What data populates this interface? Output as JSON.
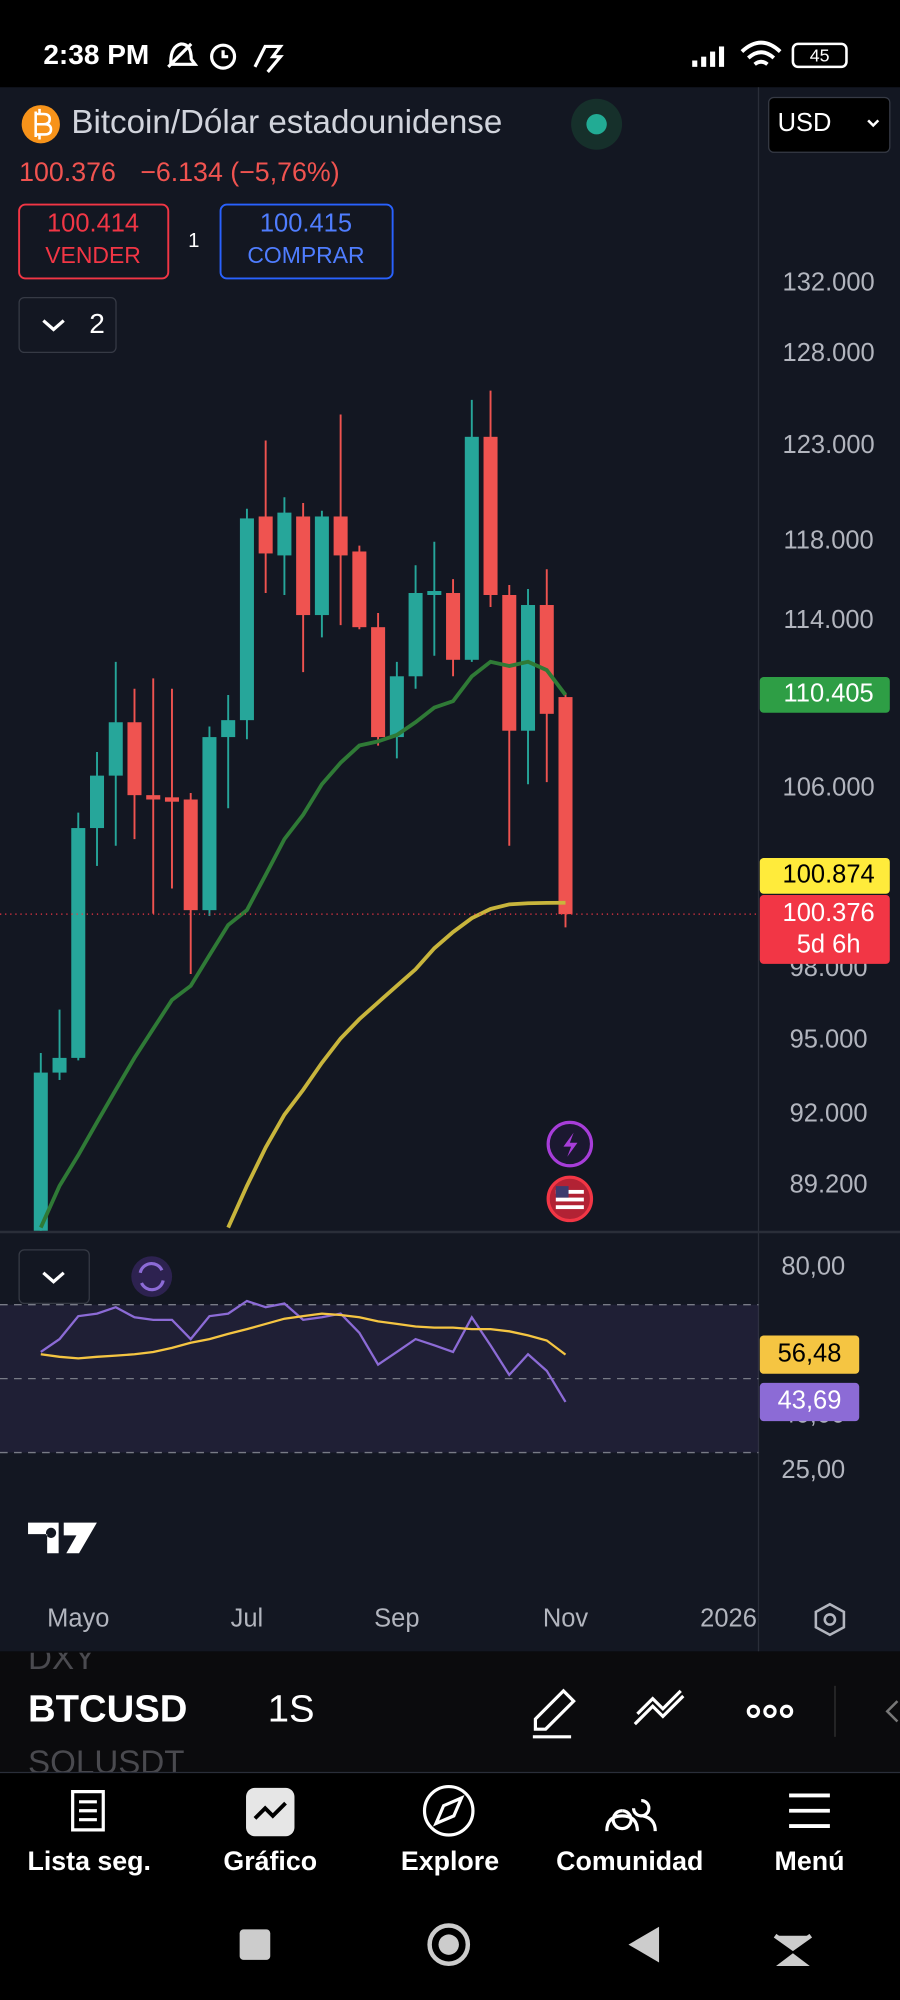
{
  "status_bar": {
    "time": "2:38 PM",
    "battery": "45"
  },
  "header": {
    "title": "Bitcoin/Dólar estadounidense",
    "currency": "USD",
    "price": "100.376",
    "change": "−6.134 (−5,76%)"
  },
  "trade": {
    "sell_price": "100.414",
    "sell_label": "VENDER",
    "quantity": "1",
    "buy_price": "100.415",
    "buy_label": "COMPRAR"
  },
  "indicators_toggle": "2",
  "chart_data": [
    {
      "type": "candlestick",
      "log_scale": true,
      "grid": true,
      "up_color": "#26a69a",
      "down_color": "#ef5350",
      "xlim": [
        -2.177,
        38.299
      ],
      "xticks": [
        {
          "value": 2,
          "label": "Mayo"
        },
        {
          "value": 11,
          "label": "Jul"
        },
        {
          "value": 19,
          "label": "Sep"
        },
        {
          "value": 28,
          "label": "Nov"
        },
        {
          "value": 36.7,
          "label": "2026"
        }
      ],
      "ylim": [
        87480,
        143750
      ],
      "yticks": [
        {
          "value": 132000,
          "label": "132.000"
        },
        {
          "value": 128000,
          "label": "128.000"
        },
        {
          "value": 123000,
          "label": "123.000"
        },
        {
          "value": 118000,
          "label": "118.000"
        },
        {
          "value": 114000,
          "label": "114.000"
        },
        {
          "value": 106000,
          "label": "106.000"
        },
        {
          "value": 98000,
          "label": "98.000"
        },
        {
          "value": 95000,
          "label": "95.000"
        },
        {
          "value": 92000,
          "label": "92.000"
        },
        {
          "value": 89200,
          "label": "89.200"
        }
      ],
      "open": [
        87000,
        93700,
        94300,
        104200,
        106600,
        109100,
        105700,
        105600,
        105500,
        100550,
        108400,
        109200,
        119300,
        117300,
        119300,
        114300,
        119300,
        117500,
        113700,
        108400,
        111300,
        115300,
        115400,
        112100,
        123500,
        115300,
        108700,
        114800,
        110300
      ],
      "high": [
        94500,
        96300,
        104900,
        107700,
        112000,
        110700,
        111200,
        110700,
        105800,
        108900,
        110400,
        119700,
        123300,
        120300,
        120000,
        119600,
        124700,
        117800,
        114400,
        112000,
        116800,
        118000,
        116100,
        125500,
        126000,
        115800,
        115600,
        116600,
        110500
      ],
      "low": [
        86000,
        93400,
        94200,
        102500,
        103400,
        103700,
        100400,
        101500,
        97800,
        100300,
        105100,
        108300,
        115400,
        115300,
        111500,
        113200,
        113800,
        113600,
        108000,
        107400,
        110700,
        112300,
        111300,
        112000,
        114700,
        103400,
        106200,
        106300,
        99800
      ],
      "close": [
        93700,
        94300,
        104200,
        106600,
        109100,
        105700,
        105500,
        105400,
        100550,
        108400,
        109200,
        119200,
        117400,
        119500,
        114300,
        119300,
        117300,
        113700,
        108400,
        111300,
        115400,
        115500,
        112100,
        123500,
        115300,
        108700,
        114800,
        109500,
        100376
      ],
      "lines": [
        {
          "color": "#2f7a36",
          "values": [
            87600,
            89200,
            90400,
            91700,
            93000,
            94300,
            95500,
            96700,
            97300,
            98600,
            99900,
            100550,
            102100,
            103700,
            104800,
            106200,
            107200,
            108000,
            108200,
            108500,
            109100,
            109800,
            110100,
            111300,
            112000,
            111800,
            112000,
            111600,
            110405
          ]
        },
        {
          "color": "#c8b53c",
          "values": [
            null,
            null,
            null,
            null,
            null,
            null,
            null,
            null,
            null,
            null,
            87600,
            89200,
            90700,
            92000,
            93000,
            94100,
            95100,
            95900,
            96600,
            97300,
            98000,
            98900,
            99600,
            100200,
            100600,
            100800,
            100850,
            100870,
            100874
          ]
        }
      ],
      "price_labels": [
        {
          "value": 110405,
          "label": "110.405",
          "color": "#2e9e45"
        },
        {
          "value": 100874,
          "label": "100.874",
          "color": "#ffeb3b"
        }
      ],
      "last_price": {
        "value": 100376,
        "label": "100.376",
        "countdown": "5d 6h",
        "color": "#f23645"
      }
    },
    {
      "type": "line",
      "band_color": "#7e57c2",
      "ylim": [
        -6.55,
        88.97
      ],
      "yticks": [
        {
          "value": 80,
          "label": "80,00"
        },
        {
          "value": 40,
          "label": "40,00"
        },
        {
          "value": 25,
          "label": "25,00"
        }
      ],
      "levels": [
        70,
        50,
        30
      ],
      "series": [
        {
          "color": "#8c6bd6",
          "values": [
            57.2,
            60.7,
            66.9,
            67.6,
            69.3,
            66.6,
            65.9,
            65.9,
            60.7,
            66.9,
            67.6,
            71.0,
            69.3,
            70.3,
            65.9,
            66.6,
            67.6,
            62.4,
            53.8,
            57.2,
            60.7,
            59.0,
            57.2,
            66.6,
            59.0,
            51.0,
            56.6,
            52.1,
            43.69
          ],
          "last_label": "43,69"
        },
        {
          "color": "#f5c542",
          "values": [
            56.6,
            55.9,
            55.5,
            55.9,
            56.2,
            56.6,
            57.2,
            58.3,
            59.7,
            60.7,
            62.1,
            63.4,
            64.8,
            66.2,
            66.9,
            67.6,
            67.2,
            66.6,
            65.5,
            64.8,
            64.1,
            63.8,
            63.8,
            63.4,
            63.4,
            62.8,
            61.7,
            60.3,
            56.48
          ],
          "last_label": "56,48"
        }
      ]
    }
  ],
  "toolbar": {
    "previous_symbol": "DXY",
    "symbol": "BTCUSD",
    "interval": "1S",
    "next_symbol": "SOLUSDT"
  },
  "nav": {
    "items": [
      "Lista seg.",
      "Gráfico",
      "Explore",
      "Comunidad",
      "Menú"
    ]
  }
}
